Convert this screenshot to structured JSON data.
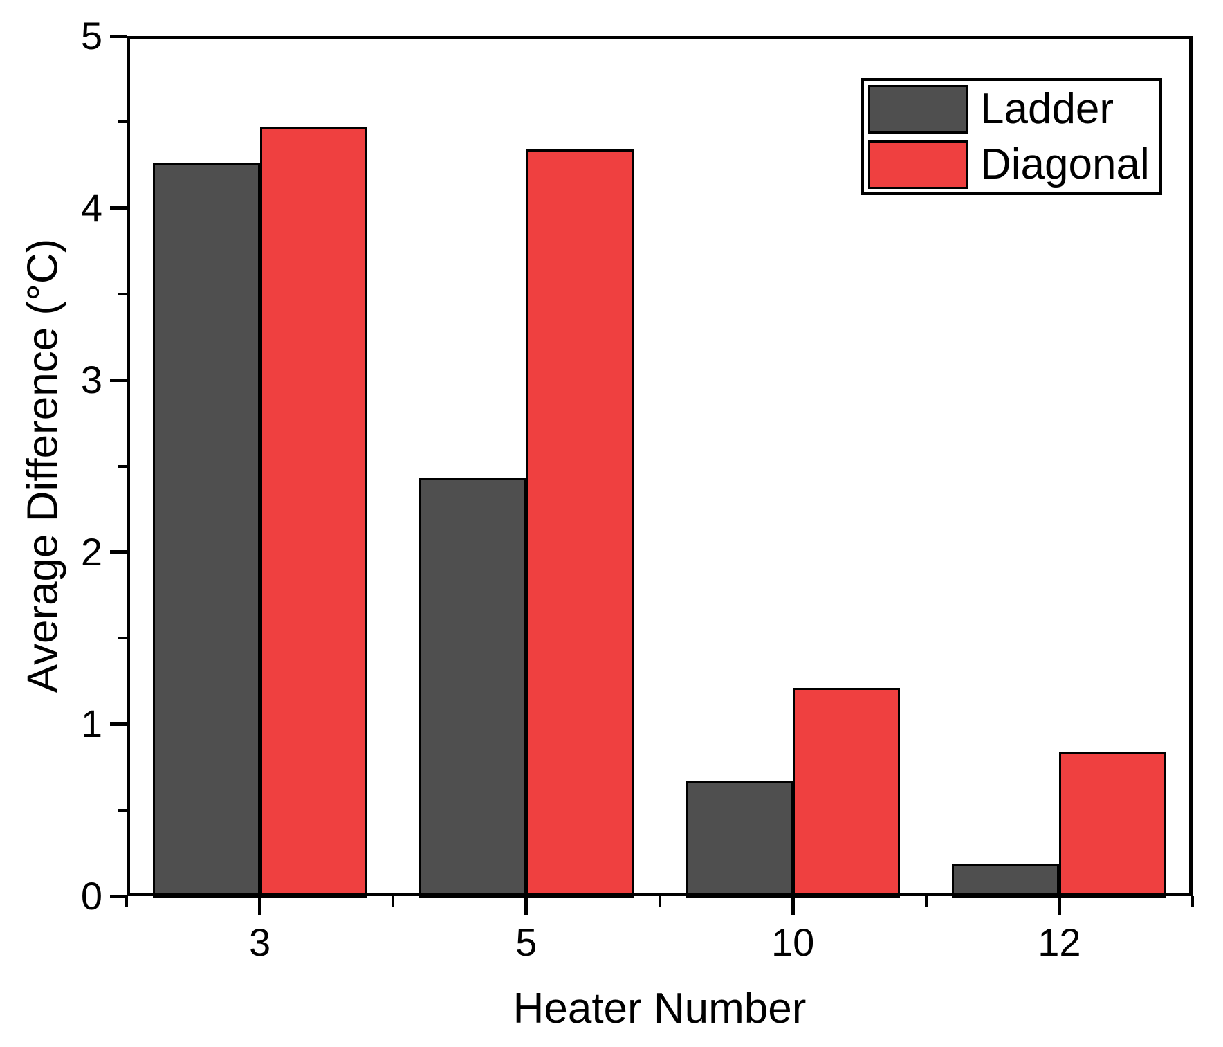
{
  "chart_data": {
    "type": "bar",
    "title": "",
    "xlabel": "Heater Number",
    "ylabel": "Average Difference (°C)",
    "categories": [
      "3",
      "5",
      "10",
      "12"
    ],
    "series": [
      {
        "name": "Ladder",
        "color": "#4F4F4F",
        "values": [
          4.26,
          2.43,
          0.67,
          0.19
        ]
      },
      {
        "name": "Diagonal",
        "color": "#EF4040",
        "values": [
          4.47,
          4.34,
          1.21,
          0.84
        ]
      }
    ],
    "ylim": [
      0,
      5
    ],
    "y_major_ticks": [
      0,
      1,
      2,
      3,
      4,
      5
    ],
    "y_minor_ticks": [
      0.5,
      1.5,
      2.5,
      3.5,
      4.5
    ],
    "grid": false,
    "legend_position": "top-right",
    "axis_color": "#000000",
    "background_color": "#ffffff",
    "bar_border_color": "#000000"
  }
}
